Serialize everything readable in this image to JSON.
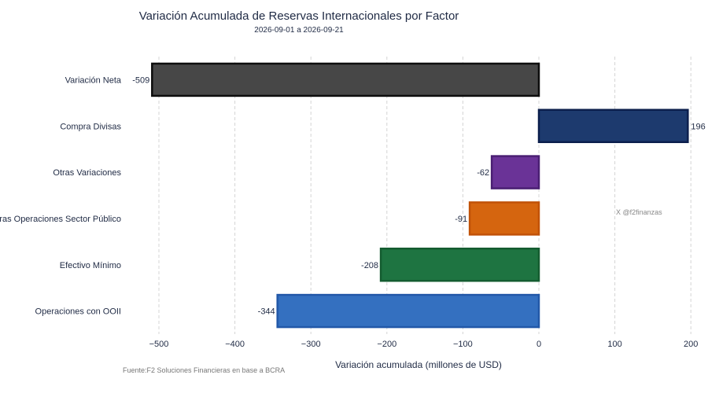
{
  "chart_data": {
    "type": "bar",
    "orientation": "horizontal",
    "title": "Variación Acumulada de Reservas Internacionales por Factor",
    "subtitle": "2026-09-01 a 2026-09-21",
    "xlabel": "Variación acumulada (millones de USD)",
    "ylabel": "",
    "xlim": [
      -530,
      215
    ],
    "xticks": [
      -500,
      -400,
      -300,
      -200,
      -100,
      0,
      100,
      200
    ],
    "xtick_labels": [
      "−500",
      "−400",
      "−300",
      "−200",
      "−100",
      "0",
      "100",
      "200"
    ],
    "grid": true,
    "categories": [
      "Variación Neta",
      "Compra Divisas",
      "Otras Variaciones",
      "Otras Operaciones Sector Público",
      "Efectivo Mínimo",
      "Operaciones con OOII"
    ],
    "values": [
      -509,
      196,
      -62,
      -91,
      -208,
      -344
    ],
    "value_labels": [
      "-509",
      "196",
      "-62",
      "-91",
      "-208",
      "-344"
    ],
    "colors": [
      "#474747",
      "#1d3a6e",
      "#6a3397",
      "#d5650f",
      "#1e7441",
      "#3470c0"
    ],
    "borders": [
      "#0d0d0d",
      "#0c1f4d",
      "#4a1f73",
      "#c15208",
      "#145c30",
      "#2258a8"
    ],
    "source": "Fuente:F2 Soluciones Financieras en base a BCRA",
    "watermark": "X @f2finanzas"
  }
}
